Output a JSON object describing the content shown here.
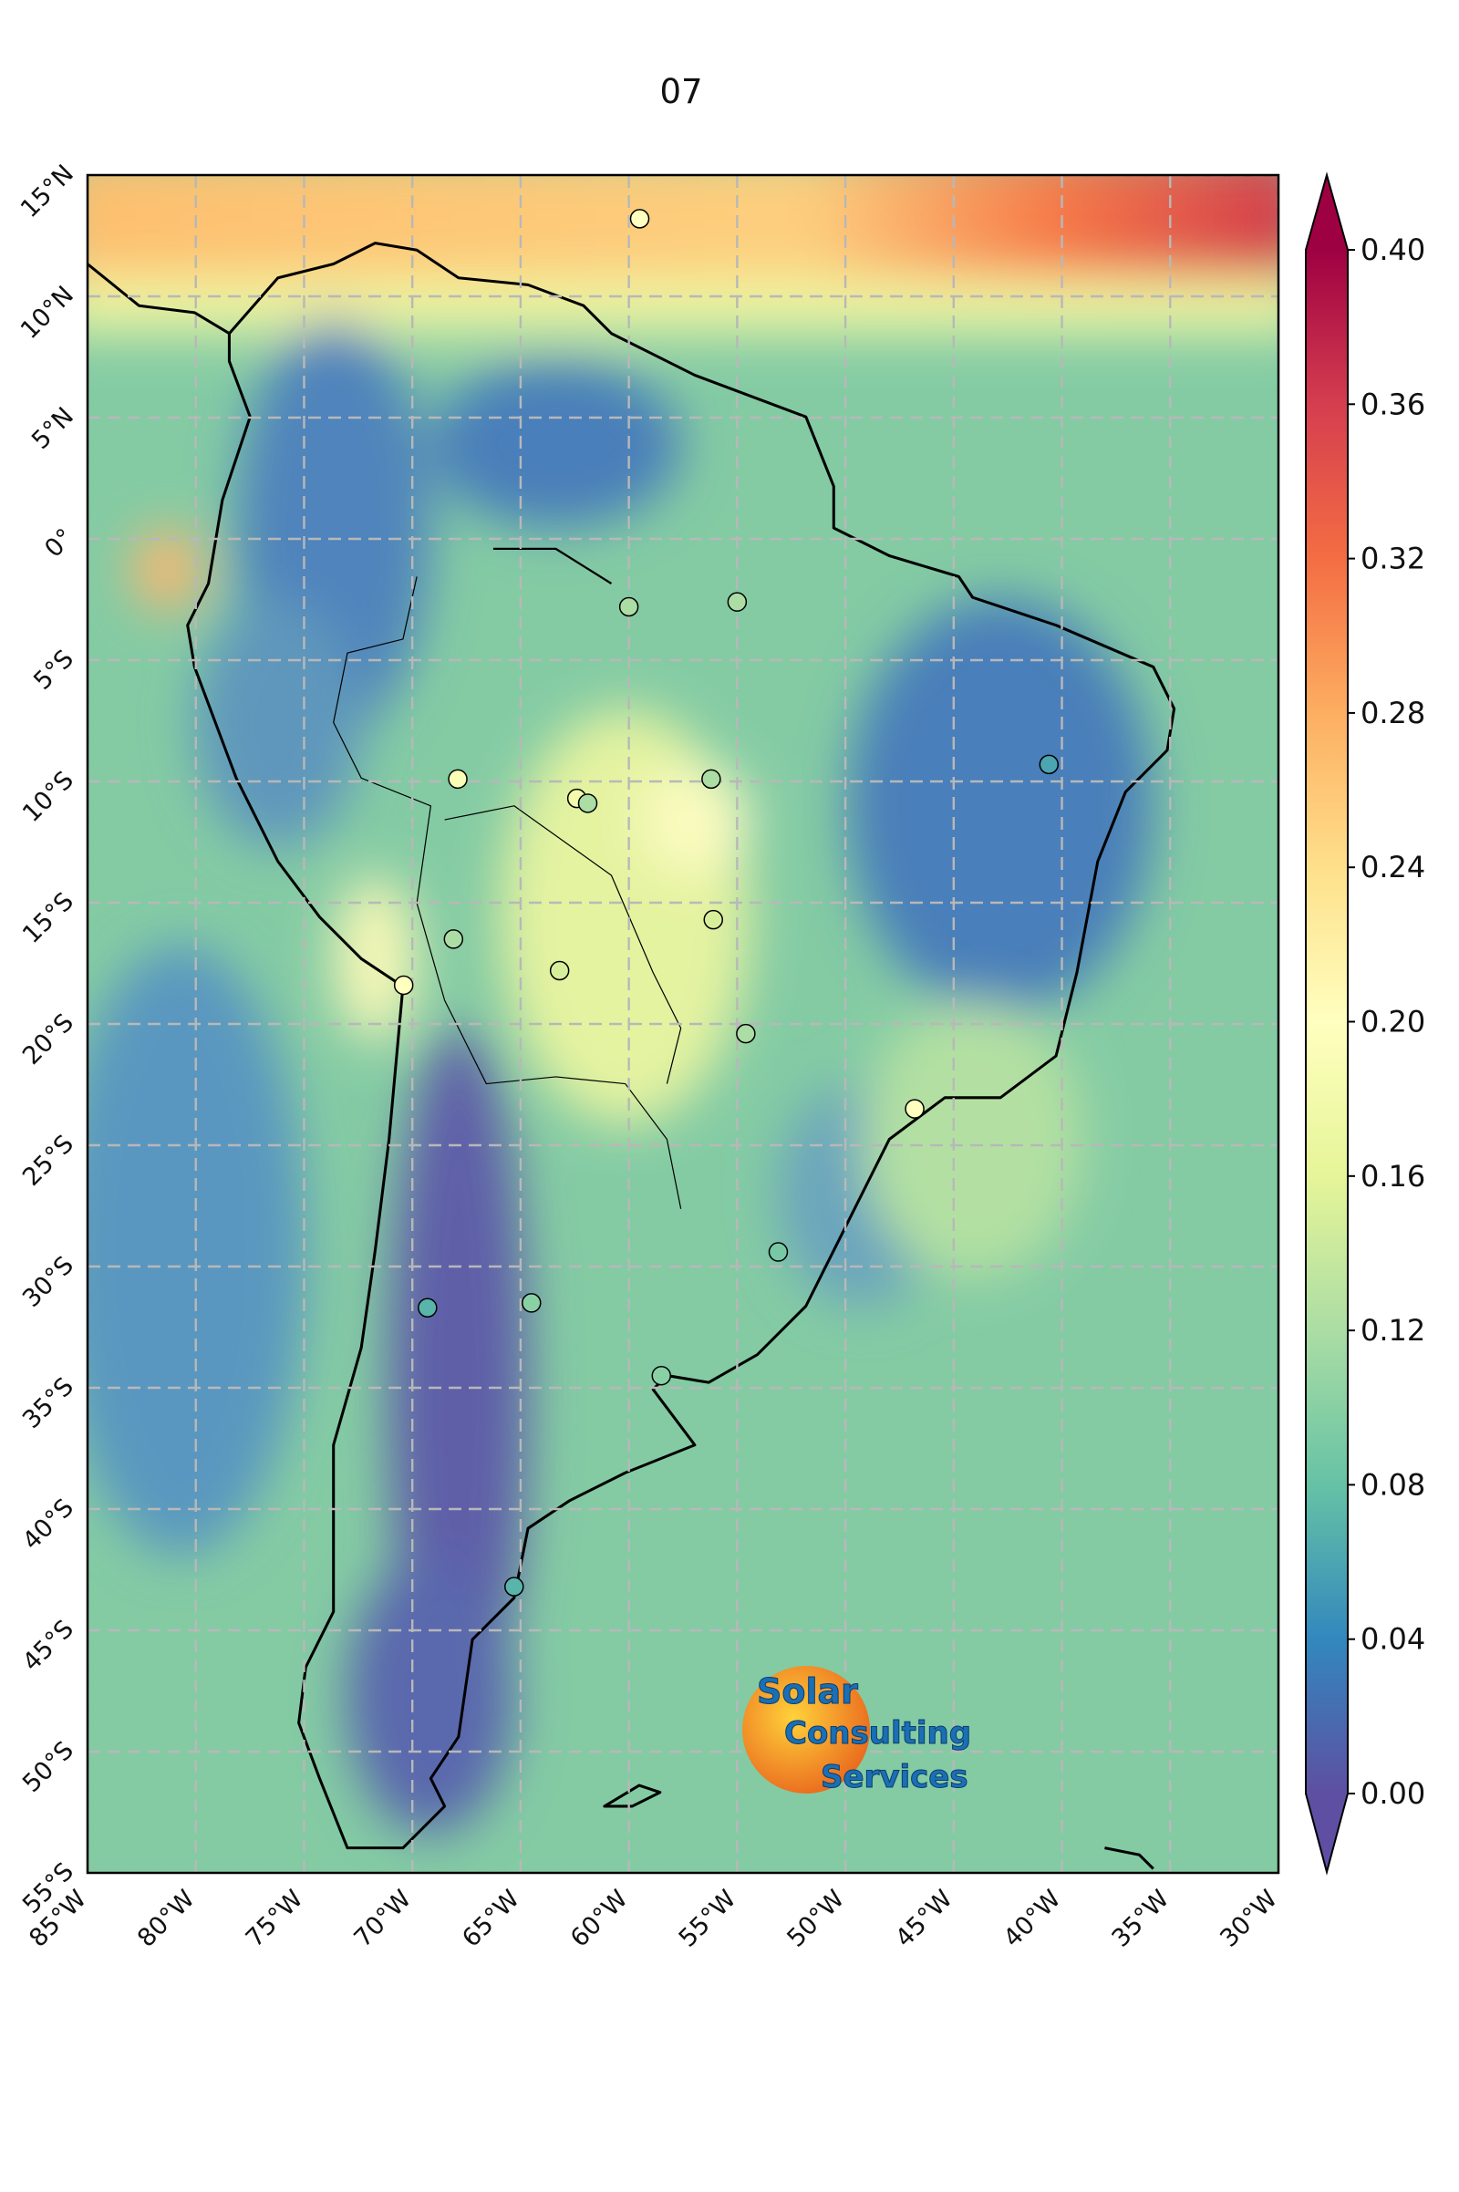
{
  "chart_data": {
    "type": "map",
    "title": "07",
    "xlim": [
      -85,
      -30
    ],
    "ylim": [
      -55,
      15
    ],
    "xticks": [
      {
        "value": -85,
        "label": "85°W"
      },
      {
        "value": -80,
        "label": "80°W"
      },
      {
        "value": -75,
        "label": "75°W"
      },
      {
        "value": -70,
        "label": "70°W"
      },
      {
        "value": -65,
        "label": "65°W"
      },
      {
        "value": -60,
        "label": "60°W"
      },
      {
        "value": -55,
        "label": "55°W"
      },
      {
        "value": -50,
        "label": "50°W"
      },
      {
        "value": -45,
        "label": "45°W"
      },
      {
        "value": -40,
        "label": "40°W"
      },
      {
        "value": -35,
        "label": "35°W"
      },
      {
        "value": -30,
        "label": "30°W"
      }
    ],
    "yticks": [
      {
        "value": 15,
        "label": "15°N"
      },
      {
        "value": 10,
        "label": "10°N"
      },
      {
        "value": 5,
        "label": "5°N"
      },
      {
        "value": 0,
        "label": "0°"
      },
      {
        "value": -5,
        "label": "5°S"
      },
      {
        "value": -10,
        "label": "10°S"
      },
      {
        "value": -15,
        "label": "15°S"
      },
      {
        "value": -20,
        "label": "20°S"
      },
      {
        "value": -25,
        "label": "25°S"
      },
      {
        "value": -30,
        "label": "30°S"
      },
      {
        "value": -35,
        "label": "35°S"
      },
      {
        "value": -40,
        "label": "40°S"
      },
      {
        "value": -45,
        "label": "45°S"
      },
      {
        "value": -50,
        "label": "50°S"
      },
      {
        "value": -55,
        "label": "55°S"
      }
    ],
    "grid": true,
    "colorbar": {
      "clim": [
        0,
        0.4
      ],
      "colormap": "Spectral_r",
      "ticks": [
        {
          "value": 0,
          "label": "0.00"
        },
        0.04,
        0.08,
        0.12,
        0.16,
        {
          "value": 0.2,
          "label": "0.20"
        },
        0.24,
        0.28,
        0.32,
        0.36,
        {
          "value": 0.4,
          "label": "0.40"
        }
      ]
    },
    "points": {
      "lon": [
        -59.5,
        -60.0,
        -55.0,
        -40.6,
        -67.9,
        -62.4,
        -61.9,
        -56.2,
        -56.1,
        -68.1,
        -63.2,
        -70.4,
        -54.6,
        -46.8,
        -53.1,
        -64.5,
        -69.3,
        -58.5,
        -65.3
      ],
      "lat": [
        13.2,
        -2.8,
        -2.6,
        -9.3,
        -9.9,
        -10.7,
        -10.9,
        -9.9,
        -15.7,
        -16.5,
        -17.8,
        -18.4,
        -20.4,
        -23.5,
        -29.4,
        -31.5,
        -31.7,
        -34.5,
        -43.2
      ],
      "values": [
        0.2,
        0.12,
        0.12,
        0.06,
        0.19,
        0.18,
        0.12,
        0.12,
        0.15,
        0.12,
        0.15,
        0.2,
        0.12,
        0.2,
        0.09,
        0.1,
        0.07,
        0.1,
        0.07
      ]
    }
  },
  "logo": {
    "line1": "Solar",
    "line2": "Consulting",
    "line3": "Services"
  }
}
